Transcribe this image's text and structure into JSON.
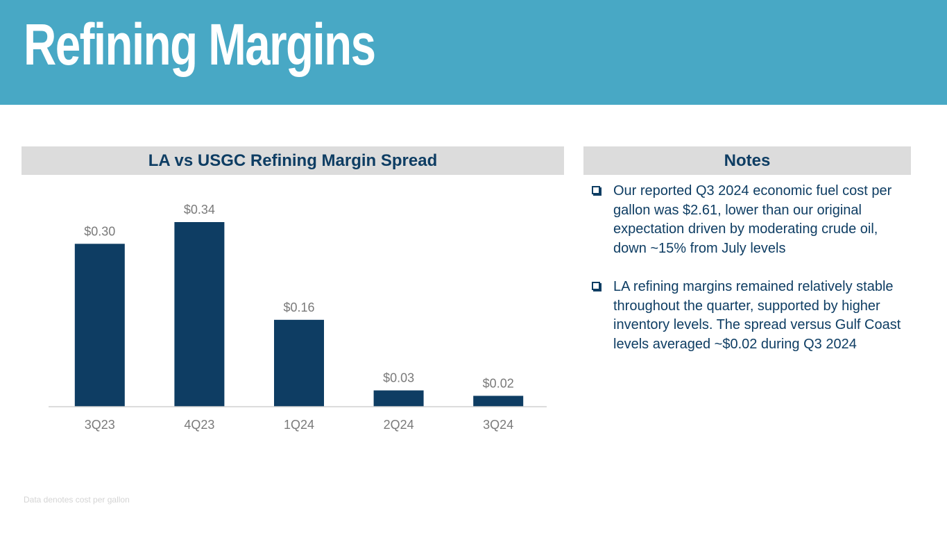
{
  "header": {
    "title": "Refining Margins"
  },
  "chart_panel": {
    "heading": "LA vs USGC Refining Margin Spread"
  },
  "notes_panel": {
    "heading": "Notes",
    "items": [
      "Our reported Q3 2024 economic fuel cost per gallon was $2.61, lower than our original expectation driven by moderating crude oil, down ~15% from July levels",
      "LA refining margins remained relatively stable throughout the quarter, supported by higher inventory levels. The spread versus Gulf Coast levels averaged ~$0.02 during Q3 2024"
    ]
  },
  "footnote": "Data denotes cost per gallon",
  "colors": {
    "header_band": "#48a8c5",
    "bar": "#0e3d63",
    "text_dark": "#0e3d63",
    "label_gray": "#7a7a7a"
  },
  "chart_data": {
    "type": "bar",
    "title": "LA vs USGC Refining Margin Spread",
    "categories": [
      "3Q23",
      "4Q23",
      "1Q24",
      "2Q24",
      "3Q24"
    ],
    "values": [
      0.3,
      0.34,
      0.16,
      0.03,
      0.02
    ],
    "data_labels": [
      "$0.30",
      "$0.34",
      "$0.16",
      "$0.03",
      "$0.02"
    ],
    "xlabel": "",
    "ylabel": "",
    "ylim": [
      0,
      0.34
    ],
    "grid": false,
    "legend": "none"
  }
}
